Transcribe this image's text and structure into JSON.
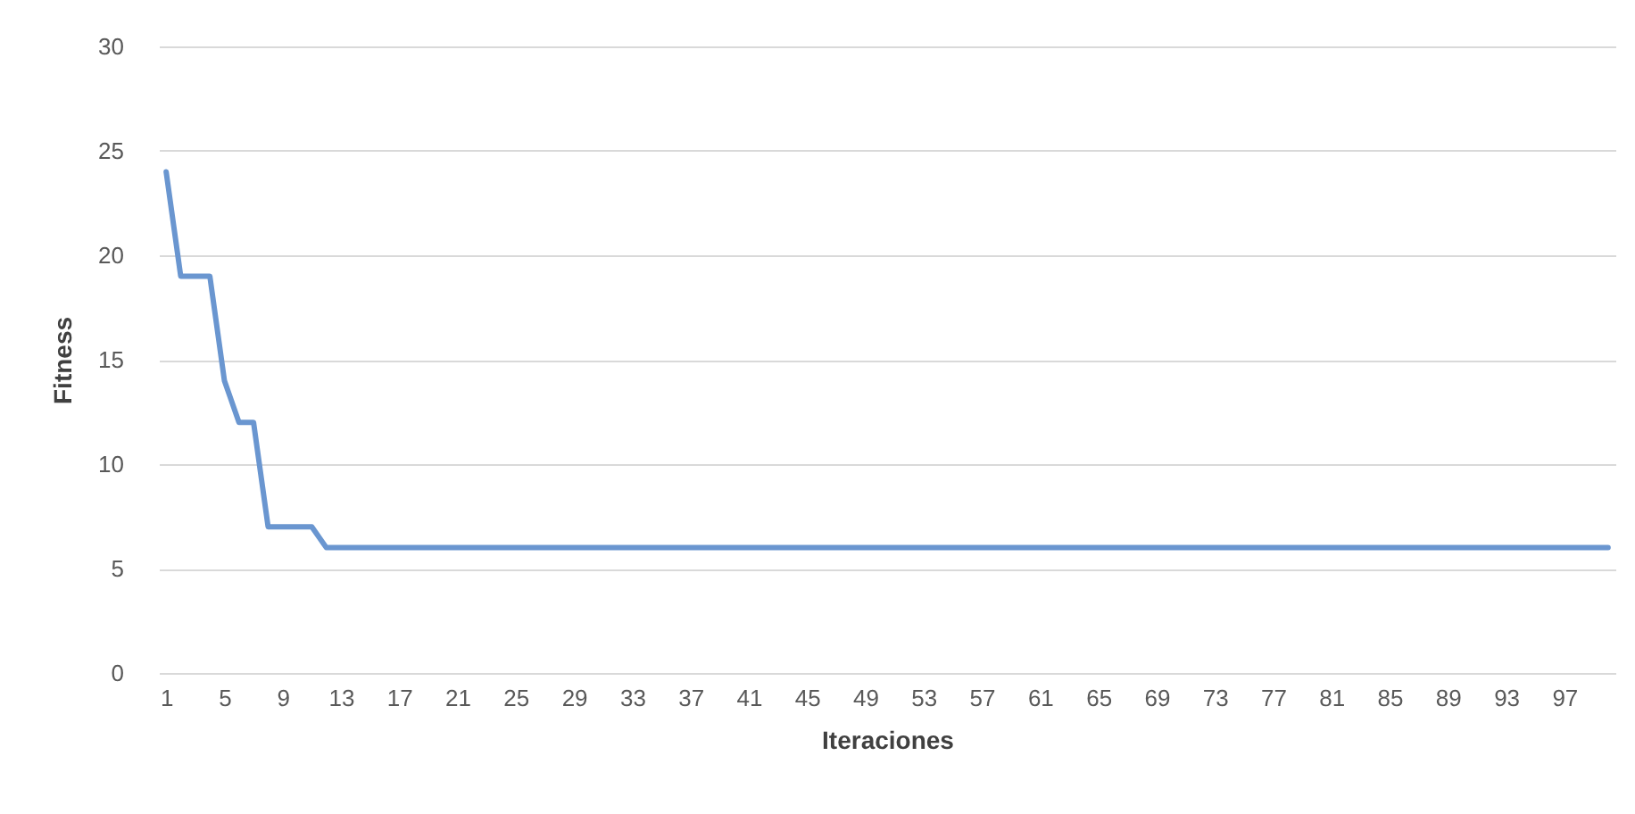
{
  "chart_data": {
    "type": "line",
    "xlabel": "Iteraciones",
    "ylabel": "Fitness",
    "categories": [
      "1",
      null,
      null,
      null,
      "5",
      null,
      null,
      null,
      "9",
      null,
      null,
      null,
      "13",
      null,
      null,
      null,
      "17",
      null,
      null,
      null,
      "21",
      null,
      null,
      null,
      "25",
      null,
      null,
      null,
      "29",
      null,
      null,
      null,
      "33",
      null,
      null,
      null,
      "37",
      null,
      null,
      null,
      "41",
      null,
      null,
      null,
      "45",
      null,
      null,
      null,
      "49",
      null,
      null,
      null,
      "53",
      null,
      null,
      null,
      "57",
      null,
      null,
      null,
      "61",
      null,
      null,
      null,
      "65",
      null,
      null,
      null,
      "69",
      null,
      null,
      null,
      "73",
      null,
      null,
      null,
      "77",
      null,
      null,
      null,
      "81",
      null,
      null,
      null,
      "85",
      null,
      null,
      null,
      "89",
      null,
      null,
      null,
      "93",
      null,
      null,
      null,
      "97",
      null,
      null,
      null
    ],
    "series": [
      {
        "color": "#6a96d0",
        "values": [
          24,
          19,
          19,
          19,
          14,
          12,
          12,
          7,
          7,
          7,
          7,
          6,
          6,
          6,
          6,
          6,
          6,
          6,
          6,
          6,
          6,
          6,
          6,
          6,
          6,
          6,
          6,
          6,
          6,
          6,
          6,
          6,
          6,
          6,
          6,
          6,
          6,
          6,
          6,
          6,
          6,
          6,
          6,
          6,
          6,
          6,
          6,
          6,
          6,
          6,
          6,
          6,
          6,
          6,
          6,
          6,
          6,
          6,
          6,
          6,
          6,
          6,
          6,
          6,
          6,
          6,
          6,
          6,
          6,
          6,
          6,
          6,
          6,
          6,
          6,
          6,
          6,
          6,
          6,
          6,
          6,
          6,
          6,
          6,
          6,
          6,
          6,
          6,
          6,
          6,
          6,
          6,
          6,
          6,
          6,
          6,
          6,
          6,
          6,
          6
        ]
      }
    ],
    "ylim": [
      0,
      30
    ],
    "yticks": [
      0,
      5,
      10,
      15,
      20,
      25,
      30
    ],
    "grid": "y",
    "marker": "none",
    "line_style": "solid"
  }
}
